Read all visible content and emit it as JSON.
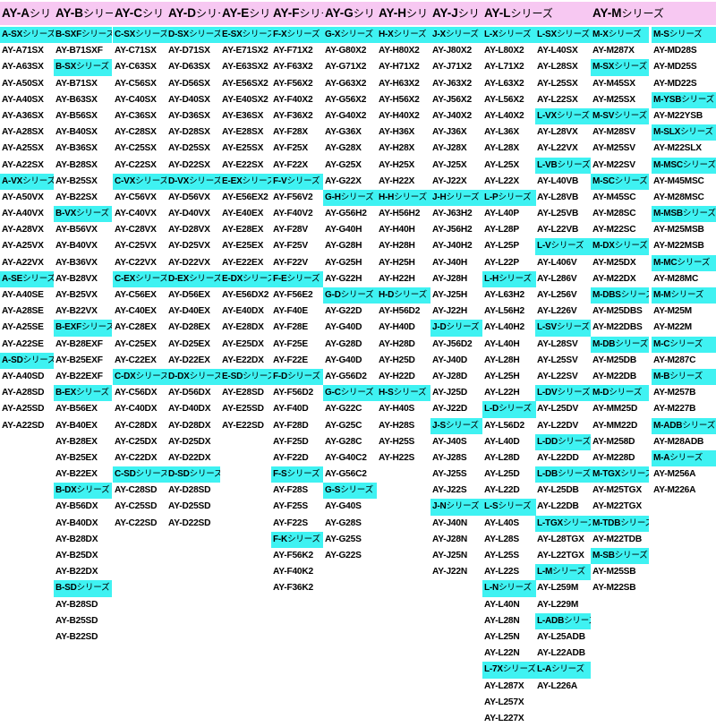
{
  "headers": [
    {
      "label": "AY-A",
      "suffix": "シリ"
    },
    {
      "label": "AY-B",
      "suffix": "シリー"
    },
    {
      "label": "AY-C",
      "suffix": "シリ"
    },
    {
      "label": "AY-D",
      "suffix": "シリー"
    },
    {
      "label": "AY-E",
      "suffix": "シリ"
    },
    {
      "label": "AY-F",
      "suffix": "シリー"
    },
    {
      "label": "AY-G",
      "suffix": "シリ"
    },
    {
      "label": "AY-H",
      "suffix": "シリ"
    },
    {
      "label": "AY-J",
      "suffix": "シリ"
    },
    {
      "label": "AY-L",
      "suffix": "シリーズ"
    },
    {
      "label": "AY-M",
      "suffix": "シリーズ"
    }
  ],
  "colors": {
    "header_bg": "#f7c8f2",
    "series_bg": "#3ff2f2"
  },
  "columns": [
    [
      {
        "t": "A-SX",
        "s": 1
      },
      {
        "t": "AY-A71SX"
      },
      {
        "t": "AY-A63SX"
      },
      {
        "t": "AY-A50SX"
      },
      {
        "t": "AY-A40SX"
      },
      {
        "t": "AY-A36SX"
      },
      {
        "t": "AY-A28SX"
      },
      {
        "t": "AY-A25SX"
      },
      {
        "t": "AY-A22SX"
      },
      {
        "t": "A-VX",
        "s": 1
      },
      {
        "t": "AY-A50VX"
      },
      {
        "t": "AY-A40VX"
      },
      {
        "t": "AY-A28VX"
      },
      {
        "t": "AY-A25VX"
      },
      {
        "t": "AY-A22VX"
      },
      {
        "t": "A-SE",
        "s": 1
      },
      {
        "t": "AY-A40SE"
      },
      {
        "t": "AY-A28SE"
      },
      {
        "t": "AY-A25SE"
      },
      {
        "t": "AY-A22SE"
      },
      {
        "t": "A-SD",
        "s": 1
      },
      {
        "t": "AY-A40SD"
      },
      {
        "t": "AY-A28SD"
      },
      {
        "t": "AY-A25SD"
      },
      {
        "t": "AY-A22SD"
      }
    ],
    [
      {
        "t": "B-SXF",
        "s": 1
      },
      {
        "t": "AY-B71SXF"
      },
      {
        "t": "B-SX",
        "s": 1
      },
      {
        "t": "AY-B71SX"
      },
      {
        "t": "AY-B63SX"
      },
      {
        "t": "AY-B56SX"
      },
      {
        "t": "AY-B40SX"
      },
      {
        "t": "AY-B36SX"
      },
      {
        "t": "AY-B28SX"
      },
      {
        "t": "AY-B25SX"
      },
      {
        "t": "AY-B22SX"
      },
      {
        "t": "B-VX",
        "s": 1
      },
      {
        "t": "AY-B56VX"
      },
      {
        "t": "AY-B40VX"
      },
      {
        "t": "AY-B36VX"
      },
      {
        "t": "AY-B28VX"
      },
      {
        "t": "AY-B25VX"
      },
      {
        "t": "AY-B22VX"
      },
      {
        "t": "B-EXF",
        "s": 1
      },
      {
        "t": "AY-B28EXF"
      },
      {
        "t": "AY-B25EXF"
      },
      {
        "t": "AY-B22EXF"
      },
      {
        "t": "B-EX",
        "s": 1
      },
      {
        "t": "AY-B56EX"
      },
      {
        "t": "AY-B40EX"
      },
      {
        "t": "AY-B28EX"
      },
      {
        "t": "AY-B25EX"
      },
      {
        "t": "AY-B22EX"
      },
      {
        "t": "B-DX",
        "s": 1
      },
      {
        "t": "AY-B56DX"
      },
      {
        "t": "AY-B40DX"
      },
      {
        "t": "AY-B28DX"
      },
      {
        "t": "AY-B25DX"
      },
      {
        "t": "AY-B22DX"
      },
      {
        "t": "B-SD",
        "s": 1
      },
      {
        "t": "AY-B28SD"
      },
      {
        "t": "AY-B25SD"
      },
      {
        "t": "AY-B22SD"
      }
    ],
    [
      {
        "t": "C-SX",
        "s": 1
      },
      {
        "t": "AY-C71SX"
      },
      {
        "t": "AY-C63SX"
      },
      {
        "t": "AY-C56SX"
      },
      {
        "t": "AY-C40SX"
      },
      {
        "t": "AY-C36SX"
      },
      {
        "t": "AY-C28SX"
      },
      {
        "t": "AY-C25SX"
      },
      {
        "t": "AY-C22SX"
      },
      {
        "t": "C-VX",
        "s": 1
      },
      {
        "t": "AY-C56VX"
      },
      {
        "t": "AY-C40VX"
      },
      {
        "t": "AY-C28VX"
      },
      {
        "t": "AY-C25VX"
      },
      {
        "t": "AY-C22VX"
      },
      {
        "t": "C-EX",
        "s": 1
      },
      {
        "t": "AY-C56EX"
      },
      {
        "t": "AY-C40EX"
      },
      {
        "t": "AY-C28EX"
      },
      {
        "t": "AY-C25EX"
      },
      {
        "t": "AY-C22EX"
      },
      {
        "t": "C-DX",
        "s": 1
      },
      {
        "t": "AY-C56DX"
      },
      {
        "t": "AY-C40DX"
      },
      {
        "t": "AY-C28DX"
      },
      {
        "t": "AY-C25DX"
      },
      {
        "t": "AY-C22DX"
      },
      {
        "t": "C-SD",
        "s": 1
      },
      {
        "t": "AY-C28SD"
      },
      {
        "t": "AY-C25SD"
      },
      {
        "t": "AY-C22SD"
      }
    ],
    [
      {
        "t": "D-SX",
        "s": 1
      },
      {
        "t": "AY-D71SX"
      },
      {
        "t": "AY-D63SX"
      },
      {
        "t": "AY-D56SX"
      },
      {
        "t": "AY-D40SX"
      },
      {
        "t": "AY-D36SX"
      },
      {
        "t": "AY-D28SX"
      },
      {
        "t": "AY-D25SX"
      },
      {
        "t": "AY-D22SX"
      },
      {
        "t": "D-VX",
        "s": 1
      },
      {
        "t": "AY-D56VX"
      },
      {
        "t": "AY-D40VX"
      },
      {
        "t": "AY-D28VX"
      },
      {
        "t": "AY-D25VX"
      },
      {
        "t": "AY-D22VX"
      },
      {
        "t": "D-EX",
        "s": 1
      },
      {
        "t": "AY-D56EX"
      },
      {
        "t": "AY-D40EX"
      },
      {
        "t": "AY-D28EX"
      },
      {
        "t": "AY-D25EX"
      },
      {
        "t": "AY-D22EX"
      },
      {
        "t": "D-DX",
        "s": 1
      },
      {
        "t": "AY-D56DX"
      },
      {
        "t": "AY-D40DX"
      },
      {
        "t": "AY-D28DX"
      },
      {
        "t": "AY-D25DX"
      },
      {
        "t": "AY-D22DX"
      },
      {
        "t": "D-SD",
        "s": 1
      },
      {
        "t": "AY-D28SD"
      },
      {
        "t": "AY-D25SD"
      },
      {
        "t": "AY-D22SD"
      }
    ],
    [
      {
        "t": "E-SX",
        "s": 1
      },
      {
        "t": "AY-E71SX2"
      },
      {
        "t": "AY-E63SX2"
      },
      {
        "t": "AY-E56SX2"
      },
      {
        "t": "AY-E40SX2"
      },
      {
        "t": "AY-E36SX"
      },
      {
        "t": "AY-E28SX"
      },
      {
        "t": "AY-E25SX"
      },
      {
        "t": "AY-E22SX"
      },
      {
        "t": "E-EX",
        "s": 1
      },
      {
        "t": "AY-E56EX2"
      },
      {
        "t": "AY-E40EX"
      },
      {
        "t": "AY-E28EX"
      },
      {
        "t": "AY-E25EX"
      },
      {
        "t": "AY-E22EX"
      },
      {
        "t": "E-DX",
        "s": 1
      },
      {
        "t": "AY-E56DX2"
      },
      {
        "t": "AY-E40DX"
      },
      {
        "t": "AY-E28DX"
      },
      {
        "t": "AY-E25DX"
      },
      {
        "t": "AY-E22DX"
      },
      {
        "t": "E-SD",
        "s": 1
      },
      {
        "t": "AY-E28SD"
      },
      {
        "t": "AY-E25SD"
      },
      {
        "t": "AY-E22SD"
      }
    ],
    [
      {
        "t": "F-X",
        "s": 1
      },
      {
        "t": "AY-F71X2"
      },
      {
        "t": "AY-F63X2"
      },
      {
        "t": "AY-F56X2"
      },
      {
        "t": "AY-F40X2"
      },
      {
        "t": "AY-F36X2"
      },
      {
        "t": "AY-F28X"
      },
      {
        "t": "AY-F25X"
      },
      {
        "t": "AY-F22X"
      },
      {
        "t": "F-V",
        "s": 1
      },
      {
        "t": "AY-F56V2"
      },
      {
        "t": "AY-F40V2"
      },
      {
        "t": "AY-F28V"
      },
      {
        "t": "AY-F25V"
      },
      {
        "t": "AY-F22V"
      },
      {
        "t": "F-E",
        "s": 1
      },
      {
        "t": "AY-F56E2"
      },
      {
        "t": "AY-F40E"
      },
      {
        "t": "AY-F28E"
      },
      {
        "t": "AY-F25E"
      },
      {
        "t": "AY-F22E"
      },
      {
        "t": "F-D",
        "s": 1
      },
      {
        "t": "AY-F56D2"
      },
      {
        "t": "AY-F40D"
      },
      {
        "t": "AY-F28D"
      },
      {
        "t": "AY-F25D"
      },
      {
        "t": "AY-F22D"
      },
      {
        "t": "F-S",
        "s": 1
      },
      {
        "t": "AY-F28S"
      },
      {
        "t": "AY-F25S"
      },
      {
        "t": "AY-F22S"
      },
      {
        "t": "F-K",
        "s": 1
      },
      {
        "t": "AY-F56K2"
      },
      {
        "t": "AY-F40K2"
      },
      {
        "t": "AY-F36K2"
      }
    ],
    [
      {
        "t": "G-X",
        "s": 1
      },
      {
        "t": "AY-G80X2"
      },
      {
        "t": "AY-G71X2"
      },
      {
        "t": "AY-G63X2"
      },
      {
        "t": "AY-G56X2"
      },
      {
        "t": "AY-G40X2"
      },
      {
        "t": "AY-G36X"
      },
      {
        "t": "AY-G28X"
      },
      {
        "t": "AY-G25X"
      },
      {
        "t": "AY-G22X"
      },
      {
        "t": "G-H",
        "s": 1
      },
      {
        "t": "AY-G56H2"
      },
      {
        "t": "AY-G40H"
      },
      {
        "t": "AY-G28H"
      },
      {
        "t": "AY-G25H"
      },
      {
        "t": "AY-G22H"
      },
      {
        "t": "G-D",
        "s": 1
      },
      {
        "t": "AY-G22D"
      },
      {
        "t": "AY-G40D"
      },
      {
        "t": "AY-G28D"
      },
      {
        "t": "AY-G40D"
      },
      {
        "t": "AY-G56D2"
      },
      {
        "t": "G-C",
        "s": 1
      },
      {
        "t": "AY-G22C"
      },
      {
        "t": "AY-G25C"
      },
      {
        "t": "AY-G28C"
      },
      {
        "t": "AY-G40C2"
      },
      {
        "t": "AY-G56C2"
      },
      {
        "t": "G-S",
        "s": 1
      },
      {
        "t": "AY-G40S"
      },
      {
        "t": "AY-G28S"
      },
      {
        "t": "AY-G25S"
      },
      {
        "t": "AY-G22S"
      }
    ],
    [
      {
        "t": "H-X",
        "s": 1
      },
      {
        "t": "AY-H80X2"
      },
      {
        "t": "AY-H71X2"
      },
      {
        "t": "AY-H63X2"
      },
      {
        "t": "AY-H56X2"
      },
      {
        "t": "AY-H40X2"
      },
      {
        "t": "AY-H36X"
      },
      {
        "t": "AY-H28X"
      },
      {
        "t": "AY-H25X"
      },
      {
        "t": "AY-H22X"
      },
      {
        "t": "H-H",
        "s": 1
      },
      {
        "t": "AY-H56H2"
      },
      {
        "t": "AY-H40H"
      },
      {
        "t": "AY-H28H"
      },
      {
        "t": "AY-H25H"
      },
      {
        "t": "AY-H22H"
      },
      {
        "t": "H-D",
        "s": 1
      },
      {
        "t": "AY-H56D2"
      },
      {
        "t": "AY-H40D"
      },
      {
        "t": "AY-H28D"
      },
      {
        "t": "AY-H25D"
      },
      {
        "t": "AY-H22D"
      },
      {
        "t": "H-S",
        "s": 1
      },
      {
        "t": "AY-H40S"
      },
      {
        "t": "AY-H28S"
      },
      {
        "t": "AY-H25S"
      },
      {
        "t": "AY-H22S"
      }
    ],
    [
      {
        "t": "J-X",
        "s": 1
      },
      {
        "t": "AY-J80X2"
      },
      {
        "t": "AY-J71X2"
      },
      {
        "t": "AY-J63X2"
      },
      {
        "t": "AY-J56X2"
      },
      {
        "t": "AY-J40X2"
      },
      {
        "t": "AY-J36X"
      },
      {
        "t": "AY-J28X"
      },
      {
        "t": "AY-J25X"
      },
      {
        "t": "AY-J22X"
      },
      {
        "t": "J-H",
        "s": 1
      },
      {
        "t": "AY-J63H2"
      },
      {
        "t": "AY-J56H2"
      },
      {
        "t": "AY-J40H2"
      },
      {
        "t": "AY-J40H"
      },
      {
        "t": "AY-J28H"
      },
      {
        "t": "AY-J25H"
      },
      {
        "t": "AY-J22H"
      },
      {
        "t": "J-D",
        "s": 1
      },
      {
        "t": "AY-J56D2"
      },
      {
        "t": "AY-J40D"
      },
      {
        "t": "AY-J28D"
      },
      {
        "t": "AY-J25D"
      },
      {
        "t": "AY-J22D"
      },
      {
        "t": "J-S",
        "s": 1
      },
      {
        "t": "AY-J40S"
      },
      {
        "t": "AY-J28S"
      },
      {
        "t": "AY-J25S"
      },
      {
        "t": "AY-J22S"
      },
      {
        "t": "J-N",
        "s": 1
      },
      {
        "t": "AY-J40N"
      },
      {
        "t": "AY-J28N"
      },
      {
        "t": "AY-J25N"
      },
      {
        "t": "AY-J22N"
      }
    ],
    [
      {
        "t": "L-X",
        "s": 1
      },
      {
        "t": "AY-L80X2"
      },
      {
        "t": "AY-L71X2"
      },
      {
        "t": "AY-L63X2"
      },
      {
        "t": "AY-L56X2"
      },
      {
        "t": "AY-L40X2"
      },
      {
        "t": "AY-L36X"
      },
      {
        "t": "AY-L28X"
      },
      {
        "t": "AY-L25X"
      },
      {
        "t": "AY-L22X"
      },
      {
        "t": "L-P",
        "s": 1
      },
      {
        "t": "AY-L40P"
      },
      {
        "t": "AY-L28P"
      },
      {
        "t": "AY-L25P"
      },
      {
        "t": "AY-L22P"
      },
      {
        "t": "L-H",
        "s": 1
      },
      {
        "t": "AY-L63H2"
      },
      {
        "t": "AY-L56H2"
      },
      {
        "t": "AY-L40H2"
      },
      {
        "t": "AY-L40H"
      },
      {
        "t": "AY-L28H"
      },
      {
        "t": "AY-L25H"
      },
      {
        "t": "AY-L22H"
      },
      {
        "t": "L-D",
        "s": 1
      },
      {
        "t": "AY-L56D2"
      },
      {
        "t": "AY-L40D"
      },
      {
        "t": "AY-L28D"
      },
      {
        "t": "AY-L25D"
      },
      {
        "t": "AY-L22D"
      },
      {
        "t": "L-S",
        "s": 1
      },
      {
        "t": "AY-L40S"
      },
      {
        "t": "AY-L28S"
      },
      {
        "t": "AY-L25S"
      },
      {
        "t": "AY-L22S"
      },
      {
        "t": "L-N",
        "s": 1
      },
      {
        "t": "AY-L40N"
      },
      {
        "t": "AY-L28N"
      },
      {
        "t": "AY-L25N"
      },
      {
        "t": "AY-L22N"
      },
      {
        "t": "L-7X",
        "s": 1
      },
      {
        "t": "AY-L287X"
      },
      {
        "t": "AY-L257X"
      },
      {
        "t": "AY-L227X"
      }
    ],
    [
      {
        "t": "L-SX",
        "s": 1
      },
      {
        "t": "AY-L40SX"
      },
      {
        "t": "AY-L28SX"
      },
      {
        "t": "AY-L25SX"
      },
      {
        "t": "AY-L22SX"
      },
      {
        "t": "L-VX",
        "s": 1
      },
      {
        "t": "AY-L28VX"
      },
      {
        "t": "AY-L22VX"
      },
      {
        "t": "L-VB",
        "s": 1
      },
      {
        "t": "AY-L40VB"
      },
      {
        "t": "AY-L28VB"
      },
      {
        "t": "AY-L25VB"
      },
      {
        "t": "AY-L22VB"
      },
      {
        "t": "L-V",
        "s": 1
      },
      {
        "t": "AY-L406V"
      },
      {
        "t": "AY-L286V"
      },
      {
        "t": "AY-L256V"
      },
      {
        "t": "AY-L226V"
      },
      {
        "t": "L-SV",
        "s": 1
      },
      {
        "t": "AY-L28SV"
      },
      {
        "t": "AY-L25SV"
      },
      {
        "t": "AY-L22SV"
      },
      {
        "t": "L-DV",
        "s": 1
      },
      {
        "t": "AY-L25DV"
      },
      {
        "t": "AY-L22DV"
      },
      {
        "t": "L-DD",
        "s": 1
      },
      {
        "t": "AY-L22DD"
      },
      {
        "t": "L-DB",
        "s": 1
      },
      {
        "t": "AY-L25DB"
      },
      {
        "t": "AY-L22DB"
      },
      {
        "t": "L-TGX",
        "s": 1
      },
      {
        "t": "AY-L28TGX"
      },
      {
        "t": "AY-L22TGX"
      },
      {
        "t": "L-M",
        "s": 1
      },
      {
        "t": "AY-L259M"
      },
      {
        "t": "AY-L229M"
      },
      {
        "t": "L-ADB",
        "s": 1
      },
      {
        "t": "AY-L25ADB"
      },
      {
        "t": "AY-L22ADB"
      },
      {
        "t": "L-A",
        "s": 1
      },
      {
        "t": "AY-L226A"
      }
    ],
    [
      {
        "t": "M-X",
        "s": 1
      },
      {
        "t": "AY-M287X"
      },
      {
        "t": "M-SX",
        "s": 1
      },
      {
        "t": "AY-M45SX"
      },
      {
        "t": "AY-M25SX"
      },
      {
        "t": "M-SV",
        "s": 1
      },
      {
        "t": "AY-M28SV"
      },
      {
        "t": "AY-M25SV"
      },
      {
        "t": "AY-M22SV"
      },
      {
        "t": "M-SC",
        "s": 1
      },
      {
        "t": "AY-M45SC"
      },
      {
        "t": "AY-M28SC"
      },
      {
        "t": "AY-M22SC"
      },
      {
        "t": "M-DX",
        "s": 1
      },
      {
        "t": "AY-M25DX"
      },
      {
        "t": "AY-M22DX"
      },
      {
        "t": "M-DBS",
        "s": 1
      },
      {
        "t": "AY-M25DBS"
      },
      {
        "t": "AY-M22DBS"
      },
      {
        "t": "M-DB",
        "s": 1
      },
      {
        "t": "AY-M25DB"
      },
      {
        "t": "AY-M22DB"
      },
      {
        "t": "M-D",
        "s": 1
      },
      {
        "t": "AY-MM25D"
      },
      {
        "t": "AY-MM22D"
      },
      {
        "t": "AY-M258D"
      },
      {
        "t": "AY-M228D"
      },
      {
        "t": "M-TGX",
        "s": 1
      },
      {
        "t": "AY-M25TGX"
      },
      {
        "t": "AY-M22TGX"
      },
      {
        "t": "M-TDB",
        "s": 1
      },
      {
        "t": "AY-M22TDB"
      },
      {
        "t": "M-SB",
        "s": 1
      },
      {
        "t": "AY-M25SB"
      },
      {
        "t": "AY-M22SB"
      }
    ],
    [
      {
        "t": "M-S",
        "s": 1
      },
      {
        "t": "AY-MD28S"
      },
      {
        "t": "AY-MD25S"
      },
      {
        "t": "AY-MD22S"
      },
      {
        "t": "M-YSB",
        "s": 1
      },
      {
        "t": "AY-M22YSB"
      },
      {
        "t": "M-SLX",
        "s": 1
      },
      {
        "t": "AY-M22SLX"
      },
      {
        "t": "M-MSC",
        "s": 1
      },
      {
        "t": "AY-M45MSC"
      },
      {
        "t": "AY-M28MSC"
      },
      {
        "t": "M-MSB",
        "s": 1
      },
      {
        "t": "AY-M25MSB"
      },
      {
        "t": "AY-M22MSB"
      },
      {
        "t": "M-MC",
        "s": 1
      },
      {
        "t": "AY-M28MC"
      },
      {
        "t": "M-M",
        "s": 1
      },
      {
        "t": "AY-M25M"
      },
      {
        "t": "AY-M22M"
      },
      {
        "t": "M-C",
        "s": 1
      },
      {
        "t": "AY-M287C"
      },
      {
        "t": "M-B",
        "s": 1
      },
      {
        "t": "AY-M257B"
      },
      {
        "t": "AY-M227B"
      },
      {
        "t": "M-ADB",
        "s": 1
      },
      {
        "t": "AY-M28ADB"
      },
      {
        "t": "M-A",
        "s": 1
      },
      {
        "t": "AY-M256A"
      },
      {
        "t": "AY-M226A"
      }
    ]
  ],
  "series_suffix": "シリーズ"
}
